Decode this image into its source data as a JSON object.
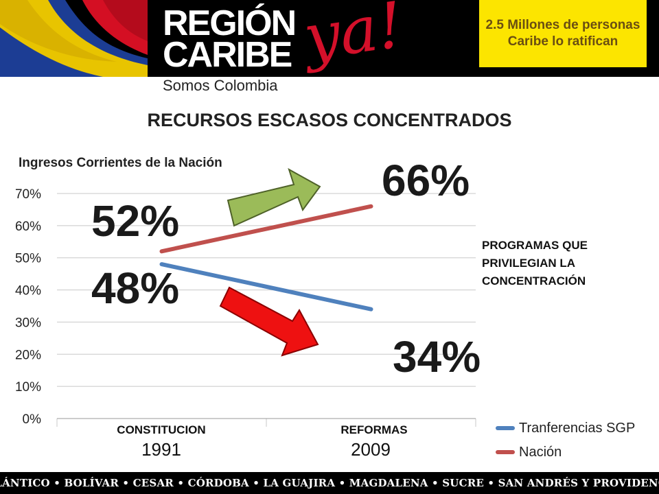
{
  "header": {
    "logo_line1": "REGIÓN",
    "logo_line2": "CARIBE",
    "logo_tagline": "Somos Colombia",
    "logo_accent": "ya!",
    "callout": "2.5 Millones de personas Caribe lo ratifican"
  },
  "slide_title": "RECURSOS ESCASOS CONCENTRADOS",
  "side_note": "PROGRAMAS QUE PRIVILEGIAN LA CONCENTRACIÓN",
  "annotations": {
    "nacion_start": "52%",
    "nacion_end": "66%",
    "sgp_start": "48%",
    "sgp_end": "34%"
  },
  "category_labels": [
    "CONSTITUCION",
    "REFORMAS"
  ],
  "footer": "ATLÁNTICO • BOLÍVAR • CESAR • CÓRDOBA • LA GUAJIRA • MAGDALENA • SUCRE • SAN ANDRÉS Y PROVIDENCIA",
  "colors": {
    "nacion": "#c0504d",
    "sgp": "#4f81bd",
    "arrow_up": "#9bbb59",
    "arrow_down": "#ee1111",
    "callout_bg": "#fce500"
  },
  "chart_data": {
    "type": "line",
    "title": "Ingresos Corrientes de la Nación",
    "categories": [
      "1991",
      "2009"
    ],
    "series": [
      {
        "name": "Tranferencias SGP",
        "values": [
          0.48,
          0.34
        ]
      },
      {
        "name": "Nación",
        "values": [
          0.52,
          0.66
        ]
      }
    ],
    "ylim": [
      0,
      0.7
    ],
    "yticks": [
      "0%",
      "10%",
      "20%",
      "30%",
      "40%",
      "50%",
      "60%",
      "70%"
    ],
    "grid": true,
    "legend": "bottom-right"
  }
}
